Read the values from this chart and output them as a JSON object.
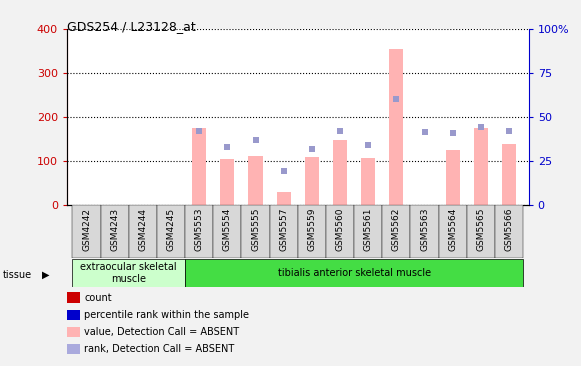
{
  "title": "GDS254 / L23128_at",
  "samples": [
    "GSM4242",
    "GSM4243",
    "GSM4244",
    "GSM4245",
    "GSM5553",
    "GSM5554",
    "GSM5555",
    "GSM5557",
    "GSM5559",
    "GSM5560",
    "GSM5561",
    "GSM5562",
    "GSM5563",
    "GSM5564",
    "GSM5565",
    "GSM5566"
  ],
  "pink_bars": [
    0,
    0,
    0,
    0,
    175,
    105,
    112,
    30,
    110,
    148,
    108,
    355,
    0,
    125,
    175,
    138
  ],
  "blue_dots_left_scale": [
    0,
    0,
    0,
    0,
    168,
    132,
    147,
    78,
    128,
    168,
    137,
    242,
    167,
    163,
    178,
    168
  ],
  "ylim_left": [
    0,
    400
  ],
  "ylim_right": [
    0,
    100
  ],
  "yticks_left": [
    0,
    100,
    200,
    300,
    400
  ],
  "yticks_right": [
    0,
    25,
    50,
    75,
    100
  ],
  "yticklabels_right": [
    "0",
    "25",
    "50",
    "75",
    "100%"
  ],
  "left_axis_color": "#cc0000",
  "right_axis_color": "#0000cc",
  "bar_color": "#ffb3b3",
  "dot_color": "#9999cc",
  "grid_color": "black",
  "tissue_groups": [
    {
      "label": "extraocular skeletal\nmuscle",
      "start": 0,
      "end": 4,
      "color": "#ccffcc"
    },
    {
      "label": "tibialis anterior skeletal muscle",
      "start": 4,
      "end": 16,
      "color": "#44dd44"
    }
  ],
  "legend_colors": [
    "#cc0000",
    "#0000cc",
    "#ffb3b3",
    "#aaaadd"
  ],
  "legend_labels": [
    "count",
    "percentile rank within the sample",
    "value, Detection Call = ABSENT",
    "rank, Detection Call = ABSENT"
  ],
  "fig_bg": "#f2f2f2",
  "plot_bg": "#ffffff",
  "xtick_box_color": "#d8d8d8"
}
